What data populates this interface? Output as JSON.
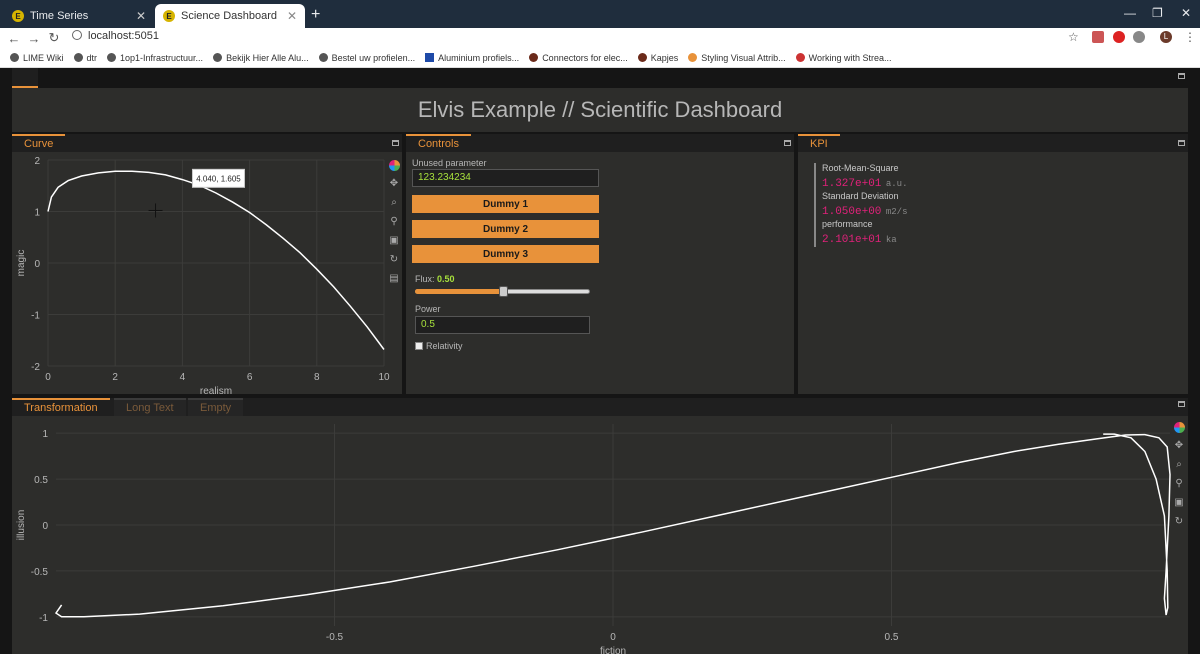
{
  "browser": {
    "tabs": [
      {
        "title": "Time Series",
        "active": false
      },
      {
        "title": "Science Dashboard",
        "active": true
      }
    ],
    "url": "localhost:5051",
    "profile_initial": "L",
    "bookmarks": [
      "LIME Wiki",
      "dtr",
      "1op1-Infrastructuur...",
      "Bekijk Hier Alle Alu...",
      "Bestel uw profielen...",
      "Aluminium profiels...",
      "Connectors for elec...",
      "Kapjes",
      "Styling Visual Attrib...",
      "Working with Strea..."
    ]
  },
  "dashboard": {
    "title": "Elvis Example // Scientific Dashboard",
    "curve_panel": {
      "tab": "Curve",
      "tooltip": "4.040, 1.605",
      "xlabel": "realism",
      "ylabel": "magic"
    },
    "controls_panel": {
      "tab": "Controls",
      "unused_label": "Unused parameter",
      "unused_value": "123.234234",
      "buttons": [
        "Dummy 1",
        "Dummy 2",
        "Dummy 3"
      ],
      "flux_label": "Flux:",
      "flux_value": "0.50",
      "flux": 0.5,
      "power_label": "Power",
      "power_value": "0.5",
      "relativity_label": "Relativity"
    },
    "kpi_panel": {
      "tab": "KPI",
      "items": [
        {
          "title": "Root-Mean-Square",
          "value": "1.327e+01",
          "unit": "a.u."
        },
        {
          "title": "Standard Deviation",
          "value": "1.050e+00",
          "unit": "m2/s"
        },
        {
          "title": "performance",
          "value": "2.101e+01",
          "unit": "ka"
        }
      ]
    },
    "bottom_panel": {
      "tabs": [
        "Transformation",
        "Long Text",
        "Empty"
      ],
      "xlabel": "fiction",
      "ylabel": "illusion"
    }
  },
  "chart_data": [
    {
      "type": "line",
      "xlabel": "realism",
      "ylabel": "magic",
      "xlim": [
        0,
        10
      ],
      "ylim": [
        -2,
        2
      ],
      "xticks": [
        "0",
        "2",
        "4",
        "6",
        "8",
        "10"
      ],
      "yticks": [
        "2",
        "1",
        "0",
        "-1",
        "-2"
      ],
      "x": [
        0,
        0.1,
        0.3,
        0.6,
        1,
        1.5,
        2,
        2.5,
        3,
        3.5,
        4,
        4.5,
        5,
        5.5,
        6,
        6.5,
        7,
        7.5,
        8,
        8.5,
        9,
        9.5,
        10
      ],
      "y": [
        1.0,
        1.28,
        1.47,
        1.6,
        1.69,
        1.75,
        1.78,
        1.78,
        1.76,
        1.71,
        1.62,
        1.51,
        1.36,
        1.18,
        0.98,
        0.74,
        0.48,
        0.2,
        -0.12,
        -0.46,
        -0.84,
        -1.24,
        -1.68
      ],
      "grid": true
    },
    {
      "type": "line",
      "xlabel": "fiction",
      "ylabel": "illusion",
      "xlim": [
        -1.0,
        1.0
      ],
      "ylim": [
        -1.1,
        1.1
      ],
      "xticks": [
        "-0.5",
        "0",
        "0.5"
      ],
      "yticks": [
        "1",
        "0.5",
        "0",
        "-0.5",
        "-1"
      ],
      "x": [
        -0.99,
        -1.0,
        -0.99,
        -0.95,
        -0.85,
        -0.7,
        -0.55,
        -0.4,
        -0.25,
        -0.1,
        0.05,
        0.2,
        0.35,
        0.5,
        0.62,
        0.72,
        0.8,
        0.87,
        0.92,
        0.955,
        0.98,
        0.995,
        1.0,
        0.998,
        0.993,
        0.99,
        0.993,
        0.996,
        0.995,
        0.99,
        0.975,
        0.955,
        0.93,
        0.9,
        0.88
      ],
      "y": [
        -0.87,
        -0.96,
        -1.0,
        -1.0,
        -0.97,
        -0.88,
        -0.76,
        -0.62,
        -0.45,
        -0.27,
        -0.08,
        0.12,
        0.32,
        0.52,
        0.68,
        0.8,
        0.88,
        0.94,
        0.98,
        0.985,
        0.95,
        0.85,
        0.55,
        0.1,
        -0.5,
        -0.8,
        -0.98,
        -0.9,
        -0.5,
        0.1,
        0.5,
        0.8,
        0.95,
        0.99,
        0.99
      ],
      "grid": true
    }
  ]
}
